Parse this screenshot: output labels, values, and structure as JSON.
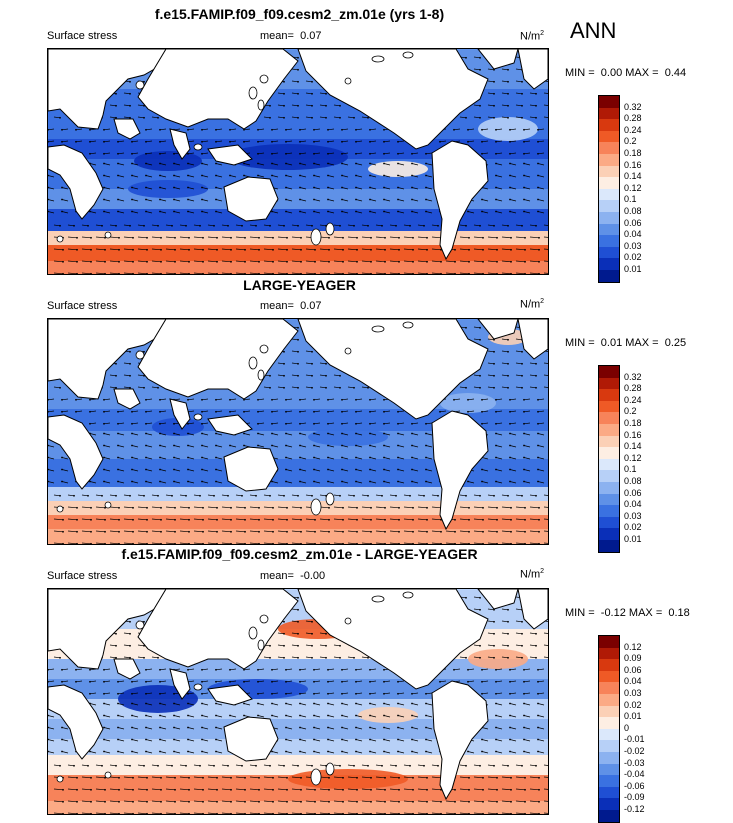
{
  "season": "ANN",
  "panels": [
    {
      "title": "f.e15.FAMIP.f09_f09.cesm2_zm.01e (yrs 1-8)",
      "variable": "Surface stress",
      "mean_label": "mean=",
      "mean_value": "0.07",
      "units": "N/m",
      "units_sup": "2",
      "min_label": "MIN =",
      "min_value": "0.00",
      "max_label": "MAX =",
      "max_value": "0.44",
      "levels": [
        "0.32",
        "0.28",
        "0.24",
        "0.2",
        "0.18",
        "0.16",
        "0.14",
        "0.12",
        "0.1",
        "0.08",
        "0.06",
        "0.04",
        "0.03",
        "0.02",
        "0.01"
      ],
      "colors": [
        "#7a0000",
        "#b01a06",
        "#d8390f",
        "#ef5a26",
        "#f7835a",
        "#fbaa85",
        "#fbd0b6",
        "#fdeee3",
        "#dbe8fb",
        "#b7d0f7",
        "#8cb2f0",
        "#5f91e7",
        "#3a71e1",
        "#1f4fd4",
        "#0a2fb8",
        "#001a8e"
      ]
    },
    {
      "title": "LARGE-YEAGER",
      "variable": "Surface stress",
      "mean_label": "mean=",
      "mean_value": "0.07",
      "units": "N/m",
      "units_sup": "2",
      "min_label": "MIN =",
      "min_value": "0.01",
      "max_label": "MAX =",
      "max_value": "0.25",
      "levels": [
        "0.32",
        "0.28",
        "0.24",
        "0.2",
        "0.18",
        "0.16",
        "0.14",
        "0.12",
        "0.1",
        "0.08",
        "0.06",
        "0.04",
        "0.03",
        "0.02",
        "0.01"
      ],
      "colors": [
        "#7a0000",
        "#b01a06",
        "#d8390f",
        "#ef5a26",
        "#f7835a",
        "#fbaa85",
        "#fbd0b6",
        "#fdeee3",
        "#dbe8fb",
        "#b7d0f7",
        "#8cb2f0",
        "#5f91e7",
        "#3a71e1",
        "#1f4fd4",
        "#0a2fb8",
        "#001a8e"
      ]
    },
    {
      "title": "f.e15.FAMIP.f09_f09.cesm2_zm.01e - LARGE-YEAGER",
      "variable": "Surface stress",
      "mean_label": "mean=",
      "mean_value": "-0.00",
      "units": "N/m",
      "units_sup": "2",
      "min_label": "MIN =",
      "min_value": "-0.12",
      "max_label": "MAX =",
      "max_value": "0.18",
      "levels": [
        "0.12",
        "0.09",
        "0.06",
        "0.04",
        "0.03",
        "0.02",
        "0.01",
        "0",
        "-0.01",
        "-0.02",
        "-0.03",
        "-0.04",
        "-0.06",
        "-0.09",
        "-0.12"
      ],
      "colors": [
        "#7a0000",
        "#b01a06",
        "#d8390f",
        "#ef5a26",
        "#f7835a",
        "#fbaa85",
        "#fbd0b6",
        "#fdeee3",
        "#dbe8fb",
        "#b7d0f7",
        "#8cb2f0",
        "#5f91e7",
        "#3a71e1",
        "#1f4fd4",
        "#0a2fb8",
        "#001a8e"
      ]
    }
  ],
  "chart_data": [
    {
      "type": "heatmap",
      "title": "f.e15.FAMIP.f09_f09.cesm2_zm.01e (yrs 1-8)",
      "field": "Surface stress",
      "units": "N/m2",
      "mean": 0.07,
      "min": 0.0,
      "max": 0.44,
      "contour_levels": [
        0.01,
        0.02,
        0.03,
        0.04,
        0.06,
        0.08,
        0.1,
        0.12,
        0.14,
        0.16,
        0.18,
        0.2,
        0.24,
        0.28,
        0.32
      ],
      "overlay": "wind stress vectors"
    },
    {
      "type": "heatmap",
      "title": "LARGE-YEAGER",
      "field": "Surface stress",
      "units": "N/m2",
      "mean": 0.07,
      "min": 0.01,
      "max": 0.25,
      "contour_levels": [
        0.01,
        0.02,
        0.03,
        0.04,
        0.06,
        0.08,
        0.1,
        0.12,
        0.14,
        0.16,
        0.18,
        0.2,
        0.24,
        0.28,
        0.32
      ],
      "overlay": "wind stress vectors"
    },
    {
      "type": "heatmap",
      "title": "f.e15.FAMIP.f09_f09.cesm2_zm.01e - LARGE-YEAGER",
      "field": "Surface stress",
      "units": "N/m2",
      "mean": -0.0,
      "min": -0.12,
      "max": 0.18,
      "contour_levels": [
        -0.12,
        -0.09,
        -0.06,
        -0.04,
        -0.03,
        -0.02,
        -0.01,
        0,
        0.01,
        0.02,
        0.03,
        0.04,
        0.06,
        0.09,
        0.12
      ],
      "overlay": "wind stress vectors"
    }
  ]
}
